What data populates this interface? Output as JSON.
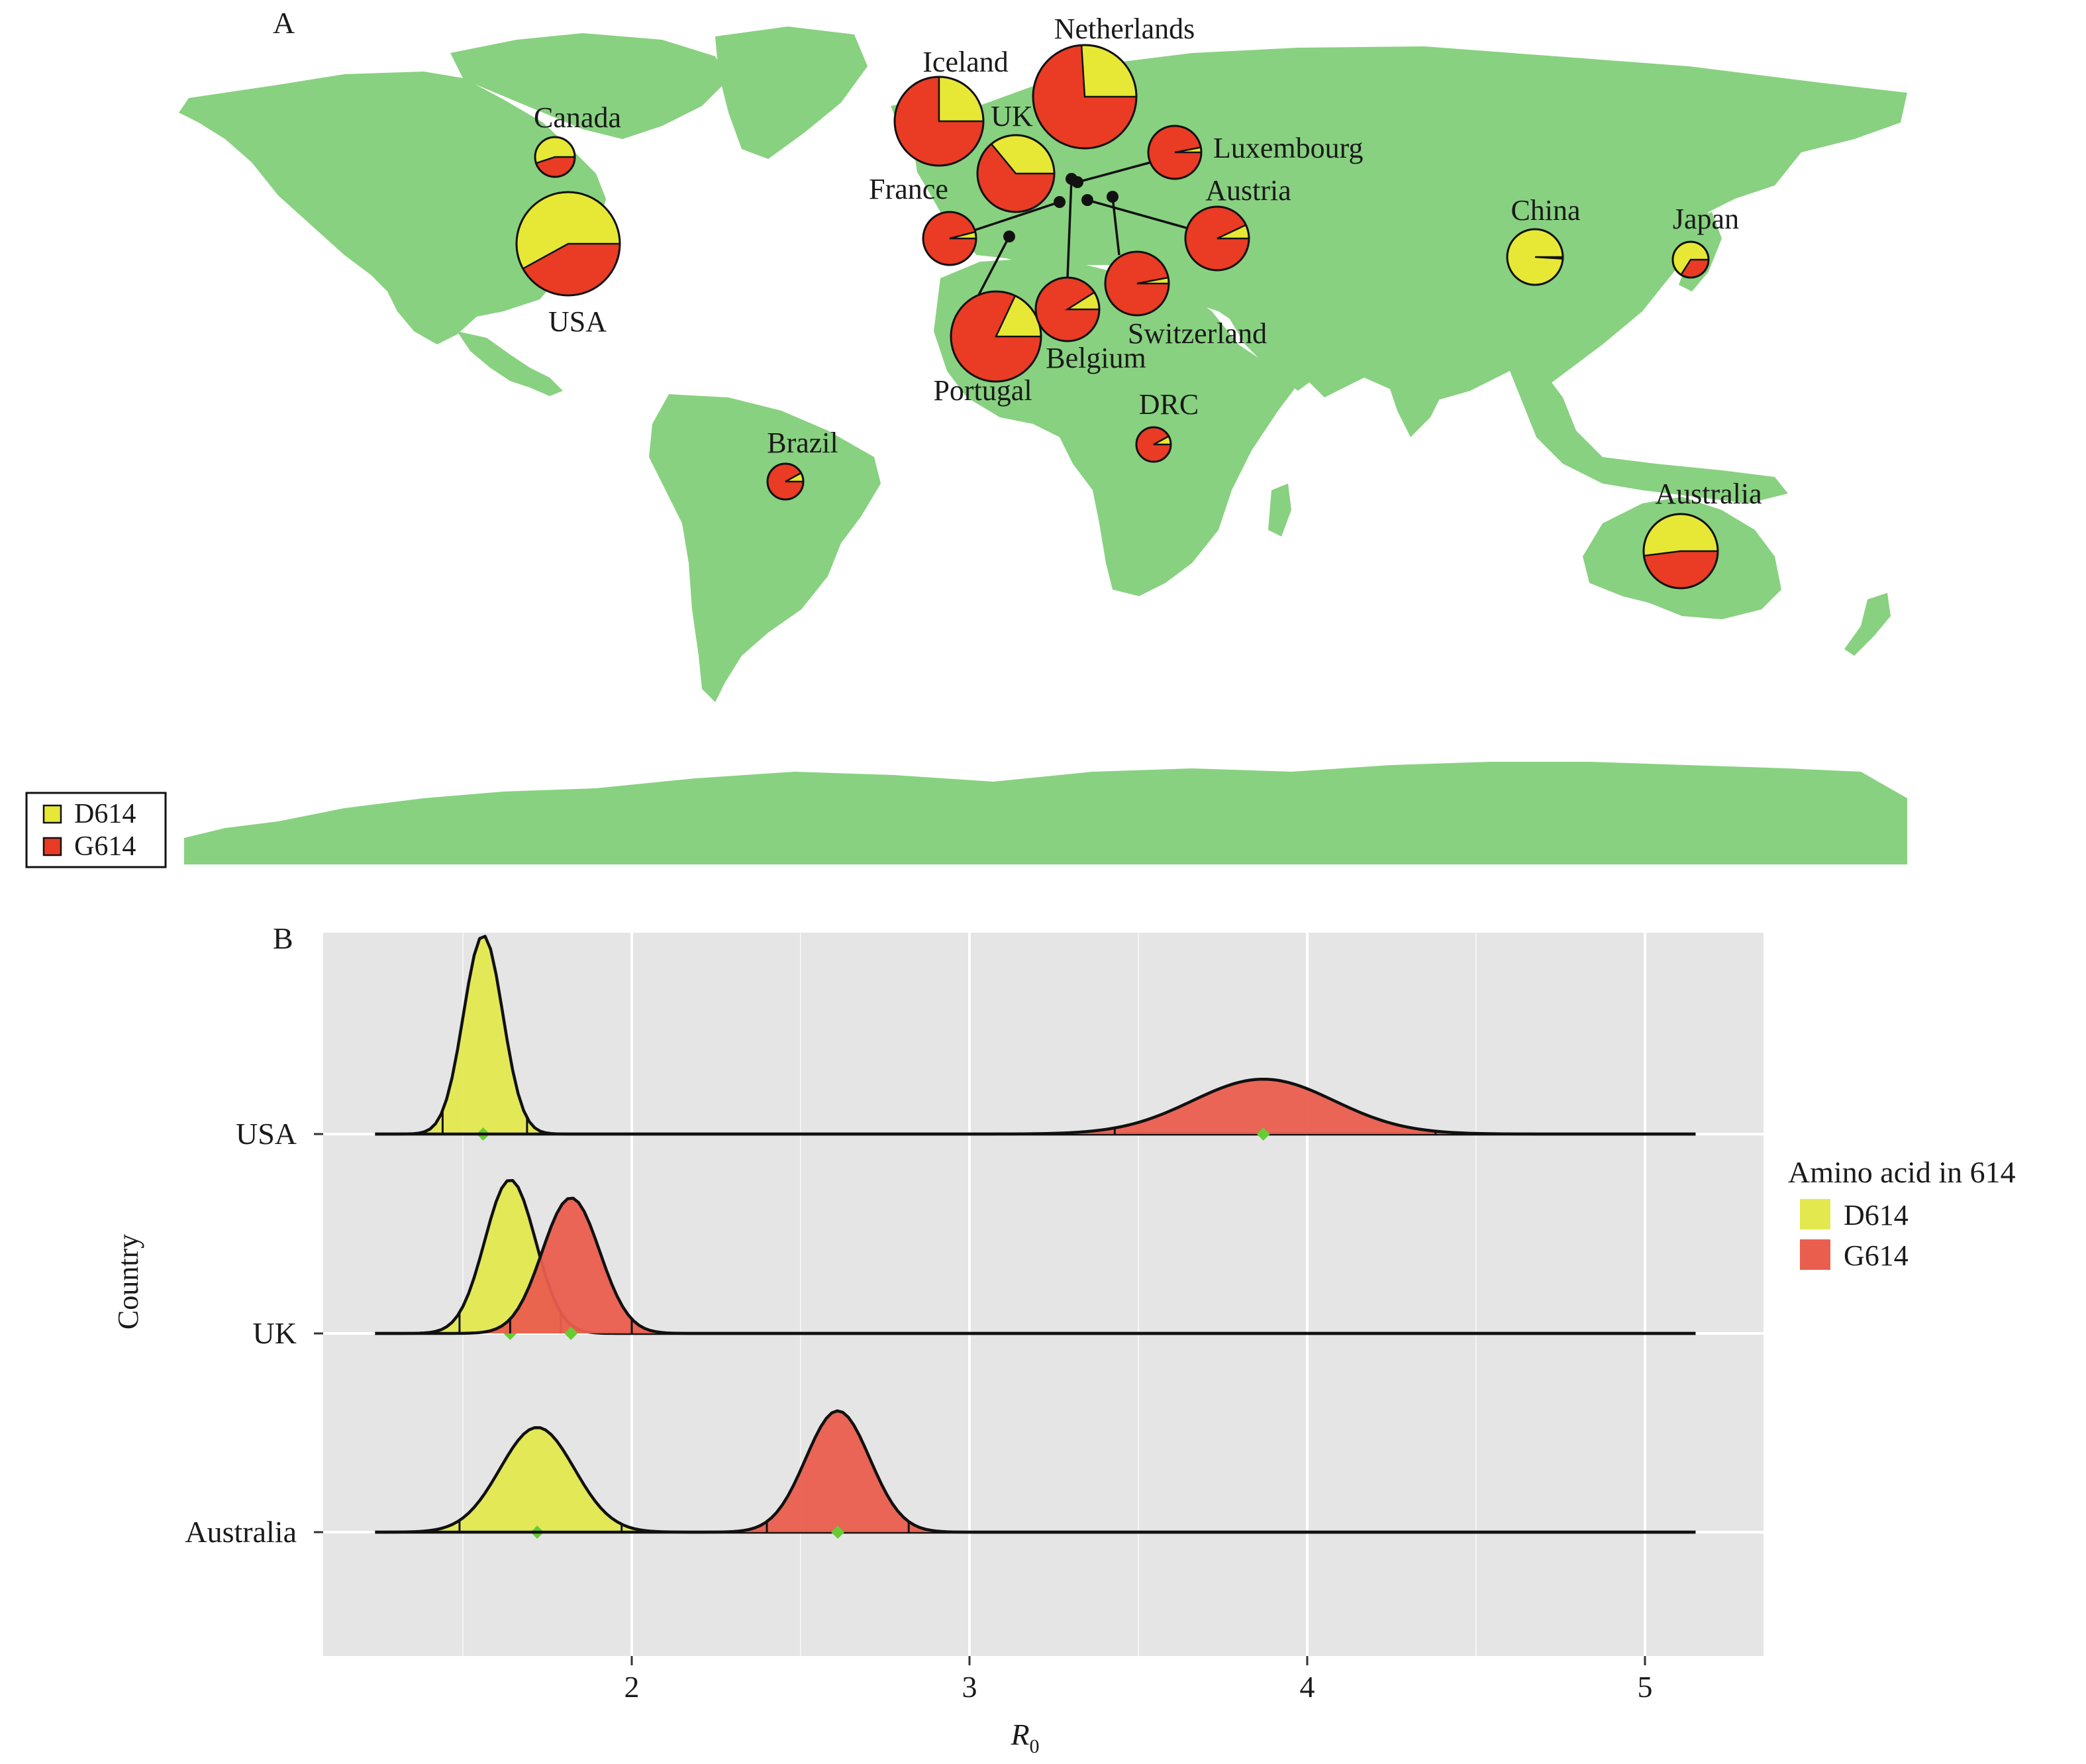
{
  "panel_labels": {
    "a": "A",
    "b": "B"
  },
  "colors": {
    "land": "#88d180",
    "map_d614": "#e6e835",
    "map_g614": "#ea3b24",
    "ridge_d614": "#e3e84f",
    "ridge_g614": "#ea5e4e",
    "panel_bg": "#e5e5e5",
    "mean_marker": "#66cc33"
  },
  "map_legend": [
    {
      "label": "D614",
      "color": "#e6e835"
    },
    {
      "label": "G614",
      "color": "#ea3b24"
    }
  ],
  "map_pies": [
    {
      "country": "Canada",
      "d614_share": 0.55
    },
    {
      "country": "USA",
      "d614_share": 0.58
    },
    {
      "country": "Iceland",
      "d614_share": 0.25
    },
    {
      "country": "UK",
      "d614_share": 0.36
    },
    {
      "country": "Netherlands",
      "d614_share": 0.26
    },
    {
      "country": "Luxembourg",
      "d614_share": 0.03
    },
    {
      "country": "France",
      "d614_share": 0.04
    },
    {
      "country": "Austria",
      "d614_share": 0.07
    },
    {
      "country": "Portugal",
      "d614_share": 0.18
    },
    {
      "country": "Belgium",
      "d614_share": 0.09
    },
    {
      "country": "Switzerland",
      "d614_share": 0.03
    },
    {
      "country": "DRC",
      "d614_share": 0.08
    },
    {
      "country": "Brazil",
      "d614_share": 0.08
    },
    {
      "country": "China",
      "d614_share": 0.99
    },
    {
      "country": "Japan",
      "d614_share": 0.66
    },
    {
      "country": "Australia",
      "d614_share": 0.52
    }
  ],
  "chart_data": {
    "type": "ridgeline",
    "xlabel": "R0",
    "ylabel": "Country",
    "xlim": [
      1.0,
      5.35
    ],
    "x_ticks": [
      2,
      3,
      4,
      5
    ],
    "categories": [
      "USA",
      "UK",
      "Australia"
    ],
    "legend": {
      "title": "Amino acid in 614",
      "position": "right"
    },
    "grid": true,
    "series": [
      {
        "name": "D614",
        "values": [
          {
            "country": "USA",
            "mean": 1.56,
            "sd": 0.058,
            "ci": [
              1.44,
              1.69
            ]
          },
          {
            "country": "UK",
            "mean": 1.64,
            "sd": 0.075,
            "ci": [
              1.49,
              1.79
            ]
          },
          {
            "country": "Australia",
            "mean": 1.72,
            "sd": 0.11,
            "ci": [
              1.49,
              1.97
            ]
          }
        ]
      },
      {
        "name": "G614",
        "values": [
          {
            "country": "USA",
            "mean": 3.87,
            "sd": 0.21,
            "ci": [
              3.43,
              4.38
            ]
          },
          {
            "country": "UK",
            "mean": 1.82,
            "sd": 0.085,
            "ci": [
              1.64,
              2.0
            ]
          },
          {
            "country": "Australia",
            "mean": 2.61,
            "sd": 0.095,
            "ci": [
              2.4,
              2.82
            ]
          }
        ]
      }
    ]
  }
}
